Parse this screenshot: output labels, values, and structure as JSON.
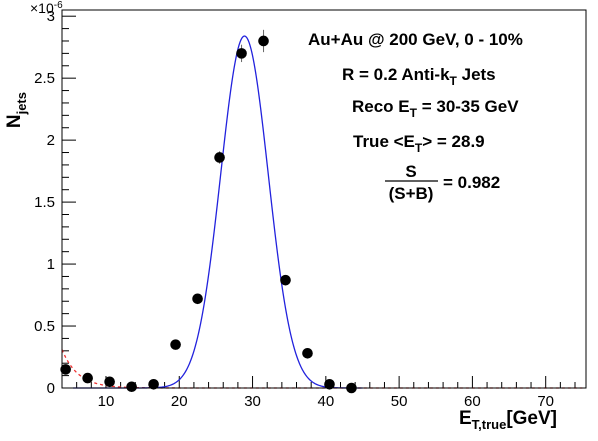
{
  "chart_data": {
    "type": "scatter",
    "title": "",
    "xlabel": {
      "main": "E",
      "sub": "T,true",
      "unit": "[GeV]"
    },
    "ylabel": {
      "main": "N",
      "sub": "jets"
    },
    "y_exponent": {
      "base": "×10",
      "exp": "-6"
    },
    "xlim": [
      4,
      75.5
    ],
    "ylim": [
      0,
      3.05
    ],
    "x_major_ticks": [
      10,
      20,
      30,
      40,
      50,
      60,
      70
    ],
    "x_minor_step": 2,
    "y_major_ticks": [
      0,
      0.5,
      1,
      1.5,
      2,
      2.5,
      3
    ],
    "y_minor_step": 0.1,
    "x_tick_labels": [
      "10",
      "20",
      "30",
      "40",
      "50",
      "60",
      "70"
    ],
    "y_tick_labels": [
      "0",
      "0.5",
      "1",
      "1.5",
      "2",
      "2.5",
      "3"
    ],
    "grid": false,
    "series": [
      {
        "kind": "points",
        "color": "#000000",
        "values": [
          {
            "x": 4.5,
            "y": 0.15,
            "err": 0.02
          },
          {
            "x": 7.5,
            "y": 0.08,
            "err": 0.02
          },
          {
            "x": 10.5,
            "y": 0.05,
            "err": 0.02
          },
          {
            "x": 13.5,
            "y": 0.01,
            "err": 0.01
          },
          {
            "x": 16.5,
            "y": 0.03,
            "err": 0.01
          },
          {
            "x": 19.5,
            "y": 0.35,
            "err": 0.02
          },
          {
            "x": 22.5,
            "y": 0.72,
            "err": 0.03
          },
          {
            "x": 25.5,
            "y": 1.86,
            "err": 0.05
          },
          {
            "x": 28.5,
            "y": 2.7,
            "err": 0.07
          },
          {
            "x": 31.5,
            "y": 2.8,
            "err": 0.09
          },
          {
            "x": 34.5,
            "y": 0.87,
            "err": 0.04
          },
          {
            "x": 37.5,
            "y": 0.28,
            "err": 0.02
          },
          {
            "x": 40.5,
            "y": 0.03,
            "err": 0.01
          },
          {
            "x": 43.5,
            "y": 0.0,
            "err": 0.01
          }
        ]
      },
      {
        "kind": "gaussian-fit",
        "color": "#2222dd",
        "amplitude": 2.84,
        "mean": 28.9,
        "sigma": 3.25,
        "x_range": [
          5.5,
          45
        ]
      },
      {
        "kind": "exponential-background",
        "color": "#ee3333",
        "dashed": true,
        "amplitude": 0.31,
        "x0": 4,
        "decay": 2.2,
        "x_range": [
          4,
          75
        ]
      }
    ],
    "annotations": {
      "line1": "Au+Au @ 200 GeV, 0 - 10%",
      "line2_main": "R = 0.2 Anti-k",
      "line2_sub": "T",
      "line2_tail": " Jets",
      "line3_main": "Reco E",
      "line3_sub": "T",
      "line3_tail": " = 30-35 GeV",
      "line4_main": "True <E",
      "line4_sub": "T",
      "line4_tail": "> = 28.9",
      "frac_num": "S",
      "frac_den": "(S+B)",
      "frac_value": "= 0.982"
    }
  }
}
